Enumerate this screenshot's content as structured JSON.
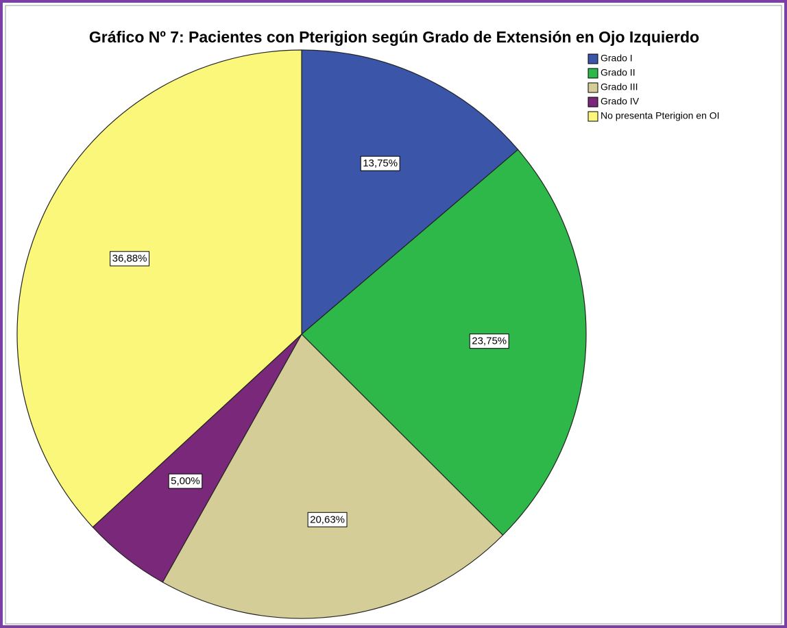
{
  "chart_data": {
    "type": "pie",
    "title": "Gráfico Nº 7: Pacientes con Pterigion según Grado de Extensión en Ojo Izquierdo",
    "categories": [
      "Grado I",
      "Grado II",
      "Grado III",
      "Grado IV",
      "No presenta Pterigion en OI"
    ],
    "values": [
      13.75,
      23.75,
      20.63,
      5.0,
      36.88
    ],
    "value_labels": [
      "13,75%",
      "23,75%",
      "20,63%",
      "5,00%",
      "36,88%"
    ],
    "colors": [
      "#3b56a8",
      "#2fb84a",
      "#d4cd97",
      "#7a2879",
      "#fbf77b"
    ],
    "legend": "upper right"
  }
}
